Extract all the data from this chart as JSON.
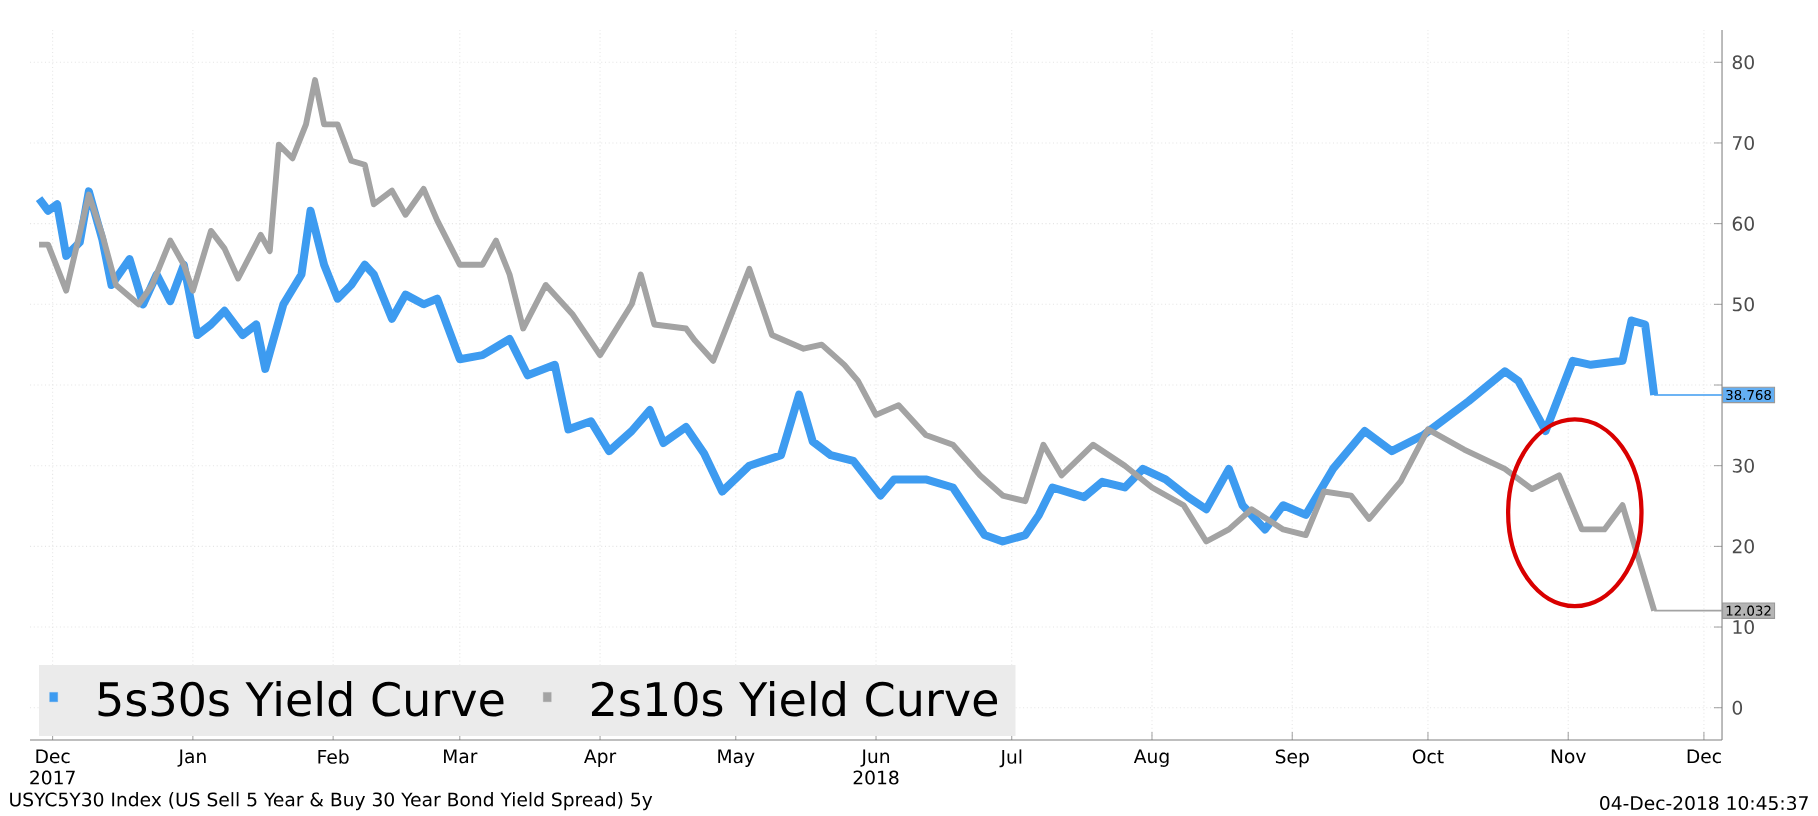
{
  "chart_data": {
    "type": "line",
    "xlim": [
      "2017-12-10",
      "2018-12-19"
    ],
    "ylim": [
      -4,
      84
    ],
    "yticks": [
      0,
      10,
      20,
      30,
      {
        "value": 40,
        "label": null
      },
      50,
      60,
      70,
      80
    ],
    "xticks": [
      {
        "value": "2017-12-15",
        "label": "Dec 2017"
      },
      {
        "value": "2018-01-15",
        "label": "Jan"
      },
      {
        "value": "2018-02-15",
        "label": "Feb"
      },
      {
        "value": "2018-03-15",
        "label": "Mar"
      },
      {
        "value": "2018-04-15",
        "label": "Apr"
      },
      {
        "value": "2018-05-15",
        "label": "May"
      },
      {
        "value": "2018-06-15",
        "label": "Jun 2018"
      },
      {
        "value": "2018-07-15",
        "label": "Jul"
      },
      {
        "value": "2018-08-15",
        "label": "Aug"
      },
      {
        "value": "2018-09-15",
        "label": "Sep"
      },
      {
        "value": "2018-10-15",
        "label": "Oct"
      },
      {
        "value": "2018-11-15",
        "label": "Nov"
      },
      {
        "value": "2018-12-15",
        "label": "Dec"
      }
    ],
    "grid": true,
    "legend": "bottom left",
    "series": [
      {
        "name": "5s30s Yield Curve",
        "color": "#3d9bf0",
        "x": [
          "2017-12-12",
          "2017-12-14",
          "2017-12-16",
          "2017-12-18",
          "2017-12-21",
          "2017-12-23",
          "2017-12-26",
          "2017-12-28",
          "2018-01-01",
          "2018-01-04",
          "2018-01-07",
          "2018-01-10",
          "2018-01-13",
          "2018-01-16",
          "2018-01-19",
          "2018-01-22",
          "2018-01-26",
          "2018-01-29",
          "2018-01-31",
          "2018-02-04",
          "2018-02-08",
          "2018-02-10",
          "2018-02-13",
          "2018-02-16",
          "2018-02-19",
          "2018-02-22",
          "2018-02-24",
          "2018-02-28",
          "2018-03-03",
          "2018-03-07",
          "2018-03-10",
          "2018-03-15",
          "2018-03-20",
          "2018-03-26",
          "2018-03-30",
          "2018-04-05",
          "2018-04-08",
          "2018-04-13",
          "2018-04-17",
          "2018-04-22",
          "2018-04-26",
          "2018-04-29",
          "2018-05-04",
          "2018-05-08",
          "2018-05-12",
          "2018-05-18",
          "2018-05-25",
          "2018-05-29",
          "2018-06-01",
          "2018-06-05",
          "2018-06-10",
          "2018-06-16",
          "2018-06-19",
          "2018-06-26",
          "2018-07-02",
          "2018-07-09",
          "2018-07-13",
          "2018-07-18",
          "2018-07-21",
          "2018-07-24",
          "2018-07-31",
          "2018-08-04",
          "2018-08-09",
          "2018-08-13",
          "2018-08-18",
          "2018-08-23",
          "2018-08-27",
          "2018-09-01",
          "2018-09-04",
          "2018-09-09",
          "2018-09-13",
          "2018-09-18",
          "2018-09-24",
          "2018-10-01",
          "2018-10-07",
          "2018-10-14",
          "2018-10-24",
          "2018-11-01",
          "2018-11-04",
          "2018-11-10",
          "2018-11-16",
          "2018-11-20",
          "2018-11-27",
          "2018-11-29",
          "2018-12-02",
          "2018-12-04"
        ],
        "values": [
          63.1,
          61.6,
          62.4,
          56,
          57.7,
          64,
          58,
          52.4,
          55.6,
          50,
          53.7,
          50.4,
          54.9,
          46.2,
          47.5,
          49.2,
          46.2,
          47.5,
          42,
          50,
          53.7,
          61.6,
          54.9,
          50.7,
          52.4,
          54.9,
          53.7,
          48.2,
          51.2,
          50,
          50.7,
          43.2,
          43.7,
          45.7,
          41.2,
          42.5,
          34.5,
          35.5,
          31.8,
          34.3,
          36.9,
          32.8,
          34.8,
          31.5,
          26.8,
          30,
          31.3,
          38.8,
          33,
          31.3,
          30.6,
          26.3,
          28.3,
          28.3,
          27.3,
          21.4,
          20.6,
          21.4,
          23.9,
          27.3,
          26.1,
          28,
          27.3,
          29.6,
          28.3,
          26.1,
          24.6,
          29.6,
          25.1,
          22.1,
          25.1,
          23.9,
          29.6,
          34.3,
          31.8,
          33.8,
          38,
          41.7,
          40.5,
          34.3,
          43,
          42.5,
          43,
          48,
          47.5,
          38.768
        ]
      },
      {
        "name": "2s10s Yield Curve",
        "color": "#a3a3a3",
        "x": [
          "2017-12-12",
          "2017-12-14",
          "2017-12-18",
          "2017-12-23",
          "2017-12-26",
          "2017-12-29",
          "2018-01-03",
          "2018-01-06",
          "2018-01-10",
          "2018-01-13",
          "2018-01-15",
          "2018-01-19",
          "2018-01-22",
          "2018-01-25",
          "2018-01-30",
          "2018-02-01",
          "2018-02-03",
          "2018-02-06",
          "2018-02-09",
          "2018-02-11",
          "2018-02-13",
          "2018-02-16",
          "2018-02-19",
          "2018-02-22",
          "2018-02-24",
          "2018-02-28",
          "2018-03-03",
          "2018-03-07",
          "2018-03-10",
          "2018-03-15",
          "2018-03-20",
          "2018-03-23",
          "2018-03-26",
          "2018-03-29",
          "2018-04-03",
          "2018-04-09",
          "2018-04-15",
          "2018-04-22",
          "2018-04-24",
          "2018-04-27",
          "2018-05-04",
          "2018-05-06",
          "2018-05-10",
          "2018-05-18",
          "2018-05-23",
          "2018-05-30",
          "2018-06-03",
          "2018-06-08",
          "2018-06-11",
          "2018-06-15",
          "2018-06-20",
          "2018-06-26",
          "2018-07-02",
          "2018-07-08",
          "2018-07-13",
          "2018-07-18",
          "2018-07-22",
          "2018-07-26",
          "2018-08-02",
          "2018-08-09",
          "2018-08-15",
          "2018-08-22",
          "2018-08-27",
          "2018-09-01",
          "2018-09-06",
          "2018-09-13",
          "2018-09-18",
          "2018-09-22",
          "2018-09-28",
          "2018-10-02",
          "2018-10-09",
          "2018-10-15",
          "2018-10-23",
          "2018-11-01",
          "2018-11-07",
          "2018-11-13",
          "2018-11-18",
          "2018-11-23",
          "2018-11-27",
          "2018-12-04"
        ],
        "values": [
          57.4,
          57.4,
          51.7,
          63.6,
          58.6,
          52.4,
          50,
          52.4,
          57.9,
          54.9,
          51.7,
          59.1,
          56.9,
          53.2,
          58.6,
          56.6,
          69.8,
          68.1,
          72.3,
          77.8,
          72.3,
          72.3,
          67.8,
          67.3,
          62.4,
          64.1,
          61.1,
          64.3,
          60.4,
          54.9,
          54.9,
          57.9,
          53.7,
          47,
          52.4,
          48.7,
          43.7,
          50,
          53.7,
          47.5,
          47,
          45.5,
          43,
          54.4,
          46.2,
          44.5,
          45,
          42.5,
          40.5,
          36.3,
          37.5,
          33.8,
          32.6,
          28.8,
          26.3,
          25.6,
          32.6,
          28.8,
          32.6,
          30,
          27.3,
          25.1,
          20.6,
          22.1,
          24.6,
          22.1,
          21.4,
          26.8,
          26.3,
          23.4,
          28.1,
          34.5,
          32,
          29.6,
          27.1,
          28.8,
          22.1,
          22.1,
          25.1,
          12.032
        ]
      }
    ],
    "annotations": [
      {
        "text": "38.768",
        "x": "2018-12-04",
        "y": 38.768
      },
      {
        "text": "12.032",
        "x": "2018-12-04",
        "y": 12.032
      },
      "USYC5Y30 Index (US Sell 5 Year & Buy 30 Year Bond Yield Spread) 5y",
      "04-Dec-2018 10:45:37"
    ]
  }
}
